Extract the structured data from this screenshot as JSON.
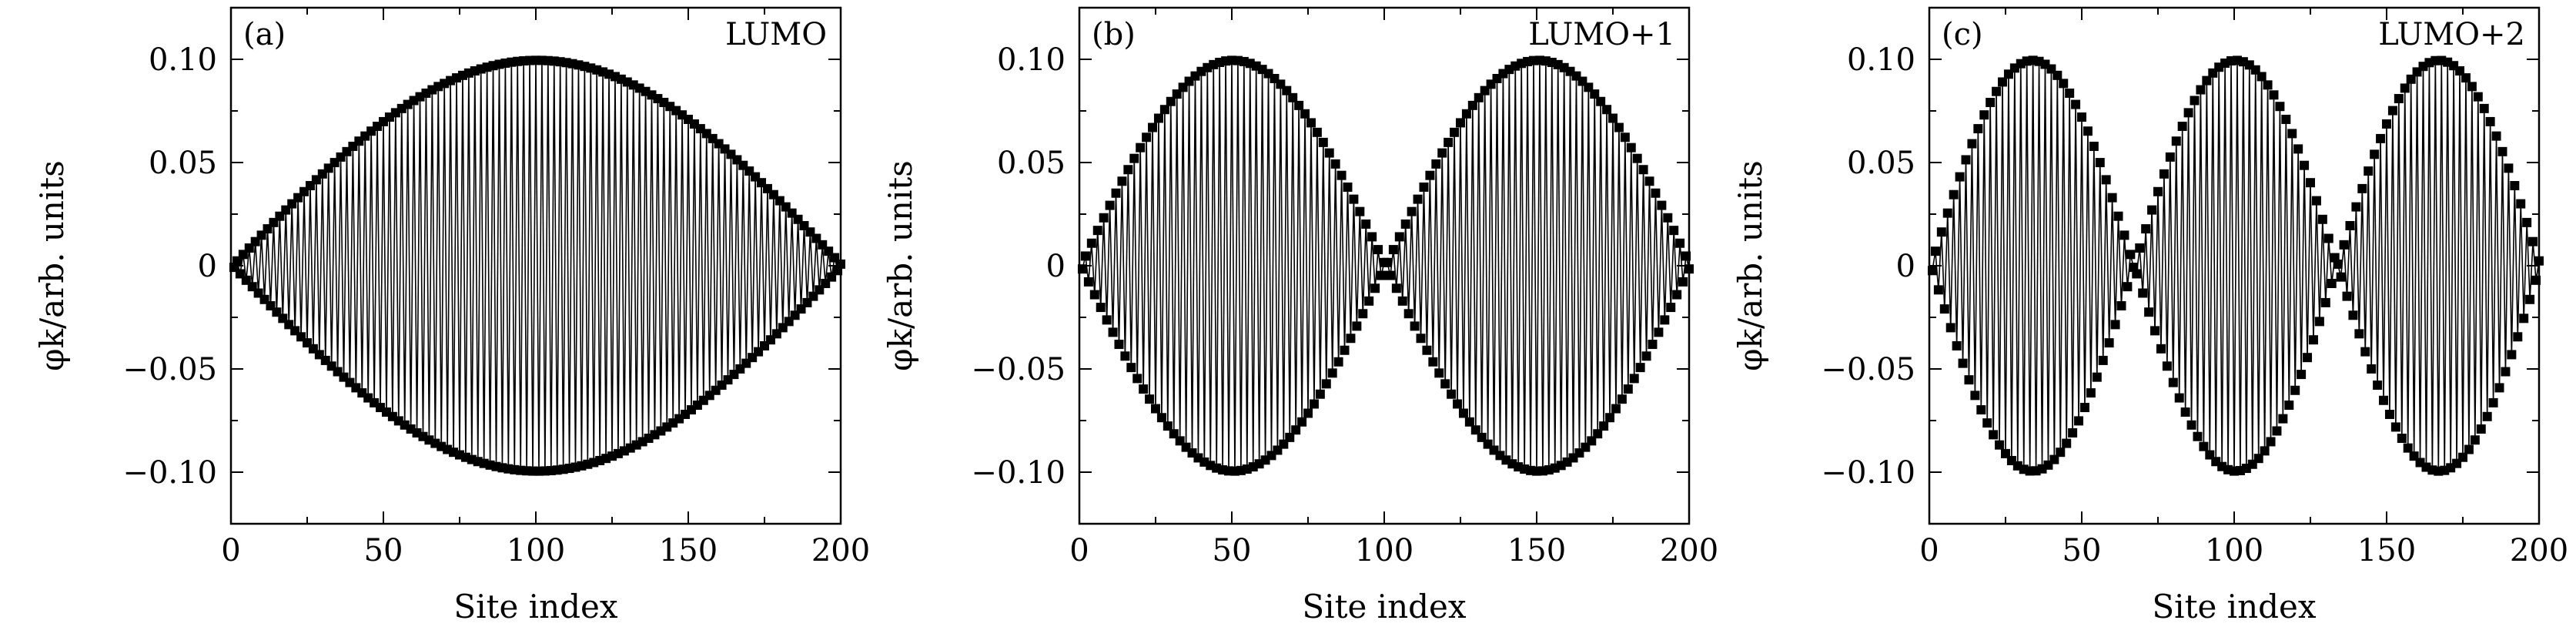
{
  "chart_data": [
    {
      "type": "line",
      "panel_label": "(a)",
      "annotation": "LUMO",
      "xlabel": "Site index",
      "ylabel": "φk/arb. units",
      "xlim": [
        0,
        200
      ],
      "ylim": [
        -0.125,
        0.125
      ],
      "xticks": [
        0,
        50,
        100,
        150,
        200
      ],
      "xtick_labels": [
        "0",
        "50",
        "100",
        "150",
        "200"
      ],
      "yticks": [
        -0.1,
        -0.05,
        0,
        0.05,
        0.1
      ],
      "ytick_labels": [
        "−0.10",
        "−0.05",
        "0",
        "0.05",
        "0.10"
      ],
      "markers": "filled squares",
      "series": [
        {
          "x_start": 1,
          "x_end": 200,
          "x_step": 1,
          "amplitude": 0.0995,
          "envelope_half_periods": 1,
          "alternating_sign": true
        }
      ]
    },
    {
      "type": "line",
      "panel_label": "(b)",
      "annotation": "LUMO+1",
      "xlabel": "Site index",
      "ylabel": "φk/arb. units",
      "xlim": [
        0,
        200
      ],
      "ylim": [
        -0.125,
        0.125
      ],
      "xticks": [
        0,
        50,
        100,
        150,
        200
      ],
      "xtick_labels": [
        "0",
        "50",
        "100",
        "150",
        "200"
      ],
      "yticks": [
        -0.1,
        -0.05,
        0,
        0.05,
        0.1
      ],
      "ytick_labels": [
        "−0.10",
        "−0.05",
        "0",
        "0.05",
        "0.10"
      ],
      "markers": "filled squares",
      "series": [
        {
          "x_start": 1,
          "x_end": 200,
          "x_step": 1,
          "amplitude": 0.0995,
          "envelope_half_periods": 2,
          "alternating_sign": true
        }
      ]
    },
    {
      "type": "line",
      "panel_label": "(c)",
      "annotation": "LUMO+2",
      "xlabel": "Site index",
      "ylabel": "φk/arb. units",
      "xlim": [
        0,
        200
      ],
      "ylim": [
        -0.125,
        0.125
      ],
      "xticks": [
        0,
        50,
        100,
        150,
        200
      ],
      "xtick_labels": [
        "0",
        "50",
        "100",
        "150",
        "200"
      ],
      "yticks": [
        -0.1,
        -0.05,
        0,
        0.05,
        0.1
      ],
      "ytick_labels": [
        "−0.10",
        "−0.05",
        "0",
        "0.05",
        "0.10"
      ],
      "markers": "filled squares",
      "series": [
        {
          "x_start": 1,
          "x_end": 200,
          "x_step": 1,
          "amplitude": 0.0995,
          "envelope_half_periods": 3,
          "alternating_sign": true
        }
      ]
    }
  ]
}
